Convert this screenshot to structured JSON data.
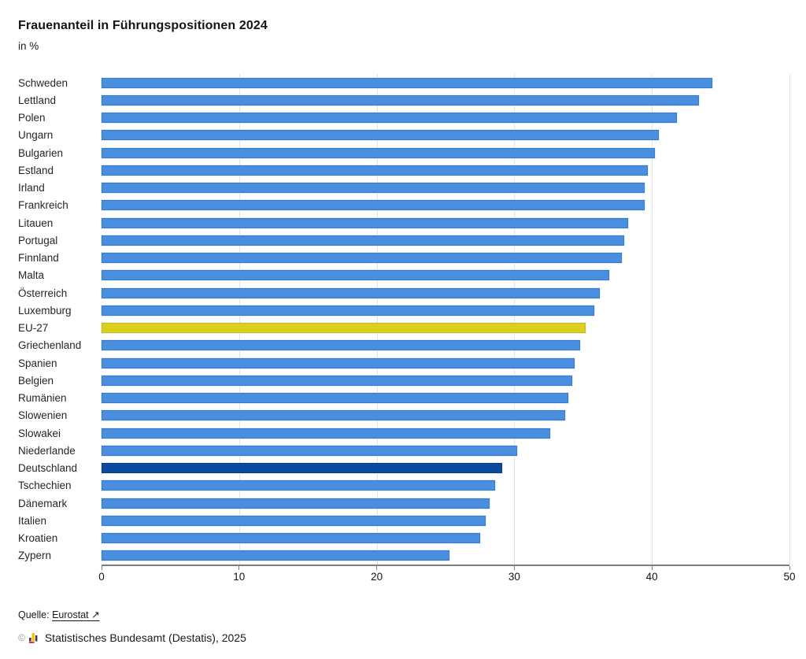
{
  "title": "Frauenanteil in Führungspositionen 2024",
  "subtitle": "in %",
  "chart_data": {
    "type": "bar",
    "orientation": "horizontal",
    "categories": [
      "Schweden",
      "Lettland",
      "Polen",
      "Ungarn",
      "Bulgarien",
      "Estland",
      "Irland",
      "Frankreich",
      "Litauen",
      "Portugal",
      "Finnland",
      "Malta",
      "Österreich",
      "Luxemburg",
      "EU-27",
      "Griechenland",
      "Spanien",
      "Belgien",
      "Rumänien",
      "Slowenien",
      "Slowakei",
      "Niederlande",
      "Deutschland",
      "Tschechien",
      "Dänemark",
      "Italien",
      "Kroatien",
      "Zypern"
    ],
    "values": [
      44.4,
      43.4,
      41.8,
      40.5,
      40.2,
      39.7,
      39.5,
      39.5,
      38.3,
      38.0,
      37.8,
      36.9,
      36.2,
      35.8,
      35.2,
      34.8,
      34.4,
      34.2,
      33.9,
      33.7,
      32.6,
      30.2,
      29.1,
      28.6,
      28.2,
      27.9,
      27.5,
      25.3
    ],
    "xlabel": "",
    "ylabel": "",
    "xlim": [
      0,
      50
    ],
    "xticks": [
      0,
      10,
      20,
      30,
      40,
      50
    ],
    "grid": "vertical",
    "legend": "none",
    "default_bar": {
      "fill": "#4a8ee0",
      "border": "#3578cf"
    },
    "highlights": {
      "EU-27": {
        "fill": "#dcd01e",
        "border": "#c9bd12"
      },
      "Deutschland": {
        "fill": "#0c4a9e",
        "border": "#083d84"
      }
    }
  },
  "footer": {
    "source_label": "Quelle:",
    "source_link": "Eurostat ↗",
    "copyright_symbol": "©",
    "copyright_text": "Statistisches Bundesamt (Destatis), 2025"
  }
}
